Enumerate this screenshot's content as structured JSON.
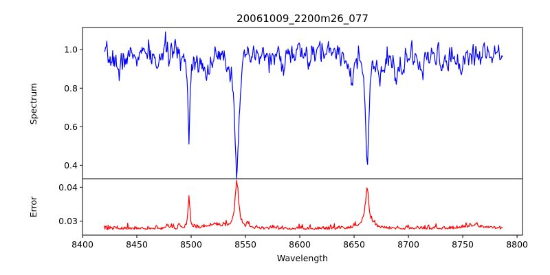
{
  "title": "20061009_2200m26_077",
  "chart_data": [
    {
      "type": "line",
      "panel": "spectrum",
      "title": "20061009_2200m26_077",
      "xlabel": "",
      "ylabel": "Spectrum",
      "xlim": [
        8400,
        8805
      ],
      "ylim": [
        0.33,
        1.115
      ],
      "xticks": [],
      "yticks": [
        0.4,
        0.6,
        0.8,
        1.0
      ],
      "ytick_labels": [
        "0.4",
        "0.6",
        "0.8",
        "1.0"
      ],
      "color": "#0000ff",
      "x_range": [
        8420,
        8787
      ],
      "continuum": [
        [
          8420,
          0.95
        ],
        [
          8450,
          0.97
        ],
        [
          8480,
          0.99
        ],
        [
          8500,
          0.97
        ],
        [
          8530,
          0.96
        ],
        [
          8560,
          0.97
        ],
        [
          8600,
          0.98
        ],
        [
          8630,
          1.0
        ],
        [
          8650,
          0.99
        ],
        [
          8680,
          0.95
        ],
        [
          8720,
          0.96
        ],
        [
          8760,
          0.97
        ],
        [
          8787,
          1.0
        ]
      ],
      "absorption_lines": [
        {
          "center": 8498,
          "depth": 0.43,
          "width": 1.0
        },
        {
          "center": 8542,
          "depth": 0.6,
          "width": 2.0
        },
        {
          "center": 8662,
          "depth": 0.58,
          "width": 1.8
        }
      ],
      "features": [
        {
          "center": 8434,
          "depth": 0.12,
          "width": 1.0
        },
        {
          "center": 8468,
          "depth": 0.1,
          "width": 1.2
        },
        {
          "center": 8514,
          "depth": 0.12,
          "width": 1.5
        },
        {
          "center": 8583,
          "depth": 0.06,
          "width": 2.0
        },
        {
          "center": 8610,
          "depth": 0.05,
          "width": 2.0
        },
        {
          "center": 8648,
          "depth": 0.12,
          "width": 3.0
        },
        {
          "center": 8674,
          "depth": 0.12,
          "width": 2.0
        },
        {
          "center": 8689,
          "depth": 0.12,
          "width": 1.5
        },
        {
          "center": 8713,
          "depth": 0.12,
          "width": 1.5
        },
        {
          "center": 8736,
          "depth": 0.1,
          "width": 1.2
        },
        {
          "center": 8747,
          "depth": 0.09,
          "width": 1.2
        }
      ],
      "noise_sigma": 0.028
    },
    {
      "type": "line",
      "panel": "error",
      "xlabel": "Wavelength",
      "ylabel": "Error",
      "xlim": [
        8400,
        8805
      ],
      "ylim": [
        0.0259,
        0.0425
      ],
      "xticks": [
        8400,
        8450,
        8500,
        8550,
        8600,
        8650,
        8700,
        8750,
        8800
      ],
      "xtick_labels": [
        "8400",
        "8450",
        "8500",
        "8550",
        "8600",
        "8650",
        "8700",
        "8750",
        "8800"
      ],
      "yticks": [
        0.03,
        0.04
      ],
      "ytick_labels": [
        "0.03",
        "0.04"
      ],
      "color": "#ff0000",
      "x_range": [
        8420,
        8787
      ],
      "baseline": 0.0275,
      "emission_lines": [
        {
          "center": 8498,
          "height": 0.0092,
          "width": 1.0
        },
        {
          "center": 8542,
          "height": 0.0135,
          "width": 2.0
        },
        {
          "center": 8662,
          "height": 0.0105,
          "width": 1.8
        }
      ],
      "wing_bumps": [
        {
          "center": 8522,
          "height": 0.0012,
          "width": 8.0
        },
        {
          "center": 8660,
          "height": 0.0015,
          "width": 6.0
        },
        {
          "center": 8760,
          "height": 0.001,
          "width": 10.0
        }
      ],
      "noise_sigma": 0.0006
    }
  ]
}
